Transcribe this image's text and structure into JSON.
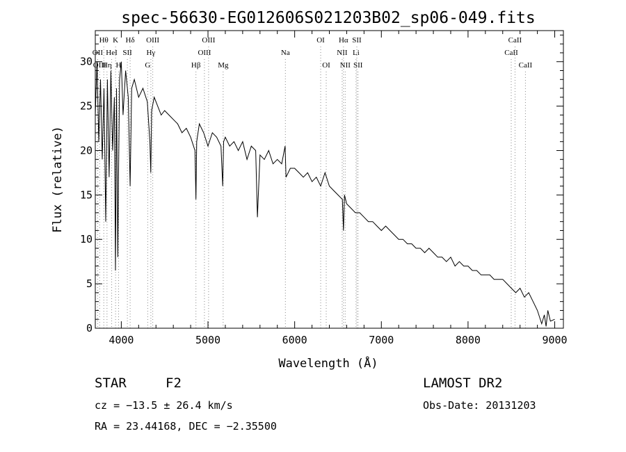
{
  "info": {
    "object_class": "STAR",
    "subclass": "F2",
    "survey": "LAMOST DR2",
    "velocity": "cz = −13.5 ± 26.4 km/s",
    "obs_date": "Obs-Date: 20131203",
    "coords": "RA =  23.44168, DEC =  −2.35500"
  },
  "chart_data": {
    "type": "line",
    "title": "spec-56630-EG012606S021203B02_sp06-049.fits",
    "xlabel": "Wavelength (Å)",
    "ylabel": "Flux (relative)",
    "xlim": [
      3700,
      9100
    ],
    "ylim": [
      0,
      33.5
    ],
    "grid": false,
    "x_ticks": [
      4000,
      5000,
      6000,
      7000,
      8000,
      9000
    ],
    "y_ticks": [
      0,
      5,
      10,
      15,
      20,
      25,
      30
    ],
    "series": [
      {
        "x": [
          3700,
          3720,
          3740,
          3760,
          3780,
          3800,
          3820,
          3840,
          3860,
          3880,
          3900,
          3920,
          3933,
          3945,
          3960,
          3968,
          3980,
          4000,
          4020,
          4050,
          4080,
          4102,
          4120,
          4150,
          4200,
          4250,
          4300,
          4330,
          4340,
          4350,
          4380,
          4420,
          4460,
          4500,
          4550,
          4600,
          4650,
          4700,
          4750,
          4800,
          4850,
          4861,
          4870,
          4900,
          4950,
          5000,
          5050,
          5100,
          5150,
          5170,
          5180,
          5200,
          5250,
          5300,
          5350,
          5400,
          5450,
          5500,
          5550,
          5570,
          5600,
          5650,
          5700,
          5750,
          5800,
          5850,
          5890,
          5900,
          5950,
          6000,
          6050,
          6100,
          6150,
          6200,
          6250,
          6300,
          6350,
          6400,
          6450,
          6500,
          6550,
          6563,
          6575,
          6600,
          6650,
          6700,
          6750,
          6800,
          6850,
          6900,
          6950,
          7000,
          7050,
          7100,
          7150,
          7200,
          7250,
          7300,
          7350,
          7400,
          7450,
          7500,
          7550,
          7600,
          7650,
          7700,
          7750,
          7800,
          7850,
          7900,
          7950,
          8000,
          8050,
          8100,
          8150,
          8200,
          8250,
          8300,
          8350,
          8400,
          8450,
          8500,
          8550,
          8600,
          8650,
          8700,
          8750,
          8800,
          8850,
          8880,
          8900,
          8920,
          8950,
          9000
        ],
        "y": [
          24.0,
          30.0,
          21.0,
          28.0,
          19.0,
          27.0,
          12.0,
          28.0,
          17.0,
          29.0,
          20.0,
          26.0,
          6.5,
          27.0,
          8.0,
          17.0,
          28.0,
          30.0,
          24.0,
          29.0,
          26.0,
          16.0,
          27.0,
          28.0,
          26.0,
          27.0,
          25.5,
          21.0,
          17.5,
          24.5,
          26.0,
          25.0,
          24.0,
          24.5,
          24.0,
          23.5,
          23.0,
          22.0,
          22.5,
          21.5,
          20.0,
          14.5,
          21.0,
          23.0,
          22.0,
          20.5,
          22.0,
          21.5,
          20.5,
          16.0,
          21.0,
          21.5,
          20.5,
          21.0,
          20.0,
          21.0,
          19.0,
          20.5,
          20.0,
          12.5,
          19.5,
          19.0,
          20.0,
          18.5,
          19.0,
          18.5,
          20.5,
          17.0,
          18.0,
          18.0,
          17.5,
          17.0,
          17.5,
          16.5,
          17.0,
          16.0,
          17.5,
          16.0,
          15.5,
          15.0,
          14.5,
          11.0,
          15.0,
          14.0,
          13.5,
          13.0,
          13.0,
          12.5,
          12.0,
          12.0,
          11.5,
          11.0,
          11.5,
          11.0,
          10.5,
          10.0,
          10.0,
          9.5,
          9.5,
          9.0,
          9.0,
          8.5,
          9.0,
          8.5,
          8.0,
          8.0,
          7.5,
          8.0,
          7.0,
          7.5,
          7.0,
          7.0,
          6.5,
          6.5,
          6.0,
          6.0,
          6.0,
          5.5,
          5.5,
          5.5,
          5.0,
          4.5,
          4.0,
          4.5,
          3.5,
          4.0,
          3.0,
          2.0,
          0.5,
          1.5,
          0.2,
          2.0,
          0.8,
          1.0
        ]
      }
    ],
    "lines": [
      {
        "name": "Hθ",
        "wl": 3798,
        "row": 0
      },
      {
        "name": "K",
        "wl": 3934,
        "row": 0
      },
      {
        "name": "Hδ",
        "wl": 4102,
        "row": 0
      },
      {
        "name": "OIII",
        "wl": 4363,
        "row": 0
      },
      {
        "name": "OIII",
        "wl": 5007,
        "row": 0
      },
      {
        "name": "OI",
        "wl": 6300,
        "row": 0
      },
      {
        "name": "Hα",
        "wl": 6563,
        "row": 0
      },
      {
        "name": "SII",
        "wl": 6717,
        "row": 0
      },
      {
        "name": "CaII",
        "wl": 8542,
        "row": 0
      },
      {
        "name": "OII",
        "wl": 3727,
        "row": 1
      },
      {
        "name": "HeI",
        "wl": 3889,
        "row": 1
      },
      {
        "name": "SII",
        "wl": 4070,
        "row": 1
      },
      {
        "name": "Hγ",
        "wl": 4341,
        "row": 1
      },
      {
        "name": "OIII",
        "wl": 4959,
        "row": 1
      },
      {
        "name": "Na",
        "wl": 5893,
        "row": 1
      },
      {
        "name": "NII",
        "wl": 6548,
        "row": 1
      },
      {
        "name": "Li",
        "wl": 6708,
        "row": 1
      },
      {
        "name": "CaII",
        "wl": 8498,
        "row": 1
      },
      {
        "name": "OIII",
        "wl": 3750,
        "row": 2
      },
      {
        "name": "Hη",
        "wl": 3835,
        "row": 2
      },
      {
        "name": "H",
        "wl": 3969,
        "row": 2
      },
      {
        "name": "G",
        "wl": 4305,
        "row": 2
      },
      {
        "name": "Hβ",
        "wl": 4861,
        "row": 2
      },
      {
        "name": "Mg",
        "wl": 5175,
        "row": 2
      },
      {
        "name": "OI",
        "wl": 6364,
        "row": 2
      },
      {
        "name": "NII",
        "wl": 6583,
        "row": 2
      },
      {
        "name": "SII",
        "wl": 6731,
        "row": 2
      },
      {
        "name": "CaII",
        "wl": 8662,
        "row": 2
      }
    ]
  }
}
